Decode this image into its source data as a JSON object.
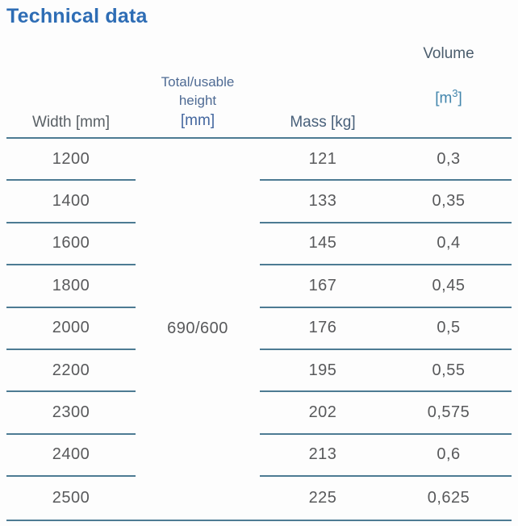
{
  "page": {
    "title": "Technical data"
  },
  "colors": {
    "title_blue": "#2e6db5",
    "rule_line": "#4d7b93",
    "body_text": "#58595b",
    "header_width_gray": "#5a6166",
    "header_height_blue": "#4f6b94",
    "header_mass_slate": "#48607a",
    "header_volume_slate": "#4b5d6d",
    "unit_blue": "#44679f",
    "volume_unit_blue": "#4285ac"
  },
  "table": {
    "headers": {
      "width": "Width [mm]",
      "height_line1": "Total/usable",
      "height_line2": "height",
      "height_unit": "[mm]",
      "mass": "Mass [kg]",
      "volume": "Volume",
      "volume_unit_open": "[m",
      "volume_unit_sup": "3",
      "volume_unit_close": "]"
    },
    "merged_height": "690/600",
    "rows": [
      {
        "width": "1200",
        "mass": "121",
        "volume": "0,3"
      },
      {
        "width": "1400",
        "mass": "133",
        "volume": "0,35"
      },
      {
        "width": "1600",
        "mass": "145",
        "volume": "0,4"
      },
      {
        "width": "1800",
        "mass": "167",
        "volume": "0,45"
      },
      {
        "width": "2000",
        "mass": "176",
        "volume": "0,5"
      },
      {
        "width": "2200",
        "mass": "195",
        "volume": "0,55"
      },
      {
        "width": "2300",
        "mass": "202",
        "volume": "0,575"
      },
      {
        "width": "2400",
        "mass": "213",
        "volume": "0,6"
      },
      {
        "width": "2500",
        "mass": "225",
        "volume": "0,625"
      }
    ]
  }
}
